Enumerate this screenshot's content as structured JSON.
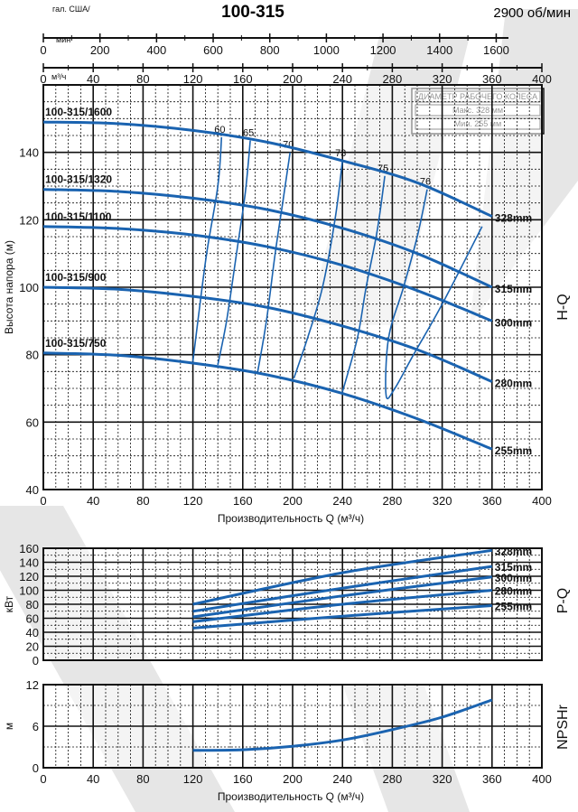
{
  "title": "100-315",
  "speed": "2900 об/мин",
  "top_axes": {
    "usgpm_label_line1": "гал. США/",
    "usgpm_label_line2": "мин",
    "usgpm_ticks": [
      "0",
      "200",
      "400",
      "600",
      "800",
      "1000",
      "1200",
      "1400",
      "1600"
    ],
    "usgpm_values": [
      0,
      200,
      400,
      600,
      800,
      1000,
      1200,
      1400,
      1600
    ],
    "m3h_unit": "м³/ч",
    "m3h_ticks": [
      "0",
      "40",
      "80",
      "120",
      "160",
      "200",
      "240",
      "280",
      "320",
      "360",
      "400"
    ]
  },
  "legend_box": {
    "heading": "ДИАМЕТР РАБОЧЕГО КОЛЕСА",
    "max": "Макс. 328 мм",
    "min": "Мин. 255 мм"
  },
  "x_label": "Производительность Q (м³/ч)",
  "side_labels": {
    "hq": "H-Q",
    "pq": "P-Q",
    "npsh": "NPSHr"
  },
  "colors": {
    "curve": "#1a63b0",
    "grid": "#111111",
    "watermark": "#e4e4e4"
  },
  "chart_data": [
    {
      "type": "line",
      "name": "H-Q",
      "xlabel": "Производительность Q (м³/ч)",
      "ylabel": "Высота напора (м)",
      "xlim": [
        0,
        400
      ],
      "ylim": [
        40,
        160
      ],
      "x_ticks": [
        "0",
        "40",
        "80",
        "120",
        "160",
        "200",
        "240",
        "280",
        "320",
        "360",
        "400"
      ],
      "y_ticks": [
        "40",
        "60",
        "80",
        "100",
        "120",
        "140"
      ],
      "grid": true,
      "series": [
        {
          "name": "328mm",
          "x": [
            0,
            60,
            120,
            180,
            240,
            300,
            360
          ],
          "y": [
            149,
            148.5,
            146.5,
            143,
            137.5,
            131,
            121
          ]
        },
        {
          "name": "315mm",
          "x": [
            0,
            60,
            120,
            180,
            240,
            300,
            360
          ],
          "y": [
            129,
            128.4,
            126.4,
            123,
            117.5,
            110,
            100
          ]
        },
        {
          "name": "300mm",
          "x": [
            0,
            60,
            120,
            180,
            240,
            300,
            360
          ],
          "y": [
            118,
            117.4,
            115.5,
            112,
            106.5,
            99,
            90
          ]
        },
        {
          "name": "280mm",
          "x": [
            0,
            60,
            120,
            180,
            240,
            300,
            360
          ],
          "y": [
            100,
            99.4,
            97.3,
            94,
            88.5,
            81.5,
            72
          ]
        },
        {
          "name": "255mm",
          "x": [
            0,
            60,
            120,
            180,
            240,
            300,
            360
          ],
          "y": [
            80.5,
            79.8,
            77.5,
            74,
            68.5,
            61,
            52
          ]
        }
      ],
      "curve_tags": [
        "100-315/1600",
        "100-315/1320",
        "100-315/1100",
        "100-315/900",
        "100-315/750"
      ],
      "efficiency_lines": [
        {
          "label": "60",
          "x": [
            143,
            140,
            131,
            124,
            120
          ],
          "y": [
            144.5,
            130,
            110,
            90,
            78
          ]
        },
        {
          "label": "65",
          "x": [
            166,
            162,
            155,
            147,
            140
          ],
          "y": [
            143.5,
            128,
            110,
            90,
            77
          ]
        },
        {
          "label": "70",
          "x": [
            198,
            192,
            186,
            179,
            172
          ],
          "y": [
            140,
            125,
            110,
            90,
            75
          ]
        },
        {
          "label": "73",
          "x": [
            240,
            234,
            224,
            212,
            201
          ],
          "y": [
            137.5,
            120,
            100,
            85,
            73
          ]
        },
        {
          "label": "75",
          "x": [
            274,
            268,
            259,
            252,
            240
          ],
          "y": [
            133,
            117,
            100,
            85,
            69
          ]
        },
        {
          "label": "76",
          "x": [
            308,
            300,
            289,
            277,
            275,
            282,
            297,
            320,
            352
          ],
          "y": [
            129,
            115,
            100,
            85,
            68,
            70,
            80,
            95,
            118
          ]
        }
      ]
    },
    {
      "type": "line",
      "name": "P-Q",
      "ylabel": "кВт",
      "xlim": [
        0,
        400
      ],
      "ylim": [
        0,
        160
      ],
      "y_ticks": [
        "0",
        "20",
        "40",
        "60",
        "80",
        "100",
        "120",
        "140",
        "160"
      ],
      "grid": true,
      "series": [
        {
          "name": "328mm",
          "x": [
            120,
            240,
            360
          ],
          "y": [
            80,
            125,
            157
          ]
        },
        {
          "name": "315mm",
          "x": [
            120,
            240,
            360
          ],
          "y": [
            70,
            103,
            134
          ]
        },
        {
          "name": "300mm",
          "x": [
            120,
            240,
            360
          ],
          "y": [
            62,
            92,
            119
          ]
        },
        {
          "name": "280mm",
          "x": [
            120,
            240,
            360
          ],
          "y": [
            55,
            80,
            100
          ]
        },
        {
          "name": "255mm",
          "x": [
            120,
            240,
            360
          ],
          "y": [
            46,
            63,
            78
          ]
        }
      ]
    },
    {
      "type": "line",
      "name": "NPSHr",
      "xlabel": "Производительность Q (м³/ч)",
      "ylabel": "м",
      "xlim": [
        0,
        400
      ],
      "ylim": [
        0,
        12
      ],
      "x_ticks": [
        "0",
        "40",
        "80",
        "120",
        "160",
        "200",
        "240",
        "280",
        "320",
        "360",
        "400"
      ],
      "y_ticks": [
        "0",
        "6",
        "12"
      ],
      "grid": true,
      "series": [
        {
          "name": "NPSHr",
          "x": [
            120,
            160,
            200,
            240,
            280,
            320,
            360
          ],
          "y": [
            2.5,
            2.6,
            3.1,
            4.0,
            5.5,
            7.3,
            9.8
          ]
        }
      ]
    }
  ]
}
